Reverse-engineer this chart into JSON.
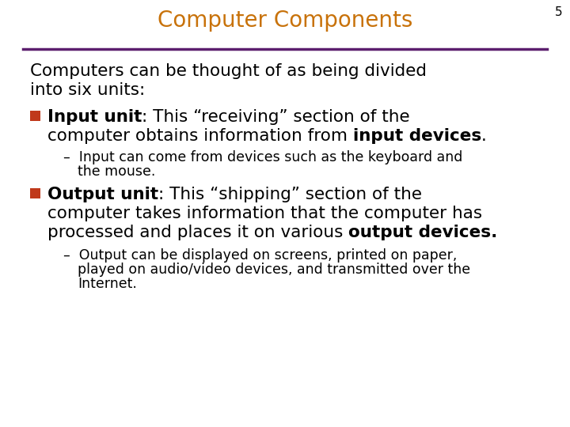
{
  "slide_number": "5",
  "title": "Computer Components",
  "title_color": "#C8720A",
  "title_fontsize": 20,
  "line_color": "#5C1F6E",
  "bg_color": "#FFFFFF",
  "slide_number_color": "#000000",
  "slide_number_fontsize": 11,
  "intro_line1": "Computers can be thought of as being divided",
  "intro_line2": "into six units:",
  "intro_fontsize": 15.5,
  "bullet_color": "#C0391B",
  "body_fontsize": 15.5,
  "sub_fontsize": 12.5
}
